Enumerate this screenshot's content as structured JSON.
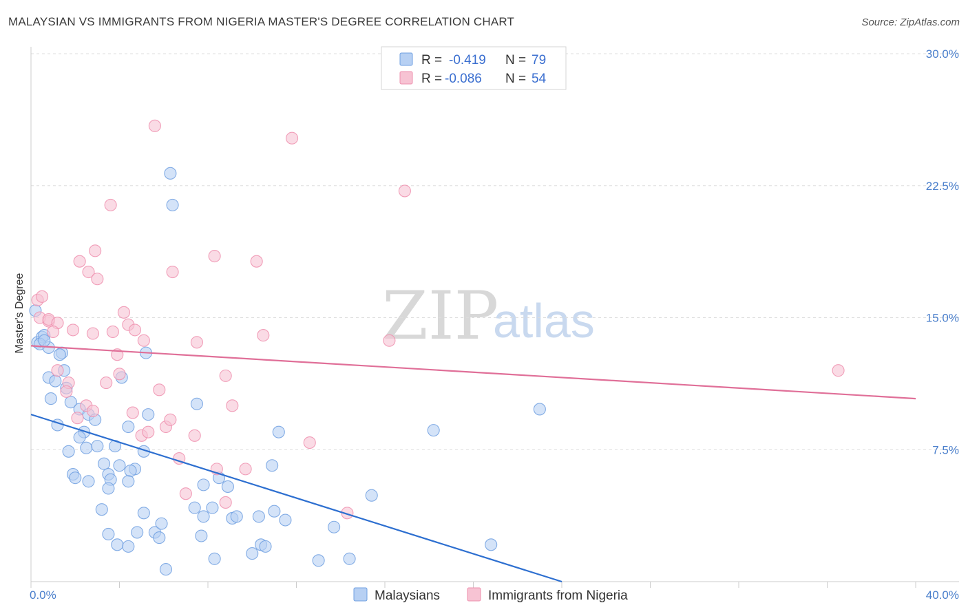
{
  "title": "MALAYSIAN VS IMMIGRANTS FROM NIGERIA MASTER'S DEGREE CORRELATION CHART",
  "source": "Source: ZipAtlas.com",
  "watermark": {
    "zip": "ZIP",
    "atlas": "atlas"
  },
  "colors": {
    "blue": "#6f9fe0",
    "blue_fill": "#b7d0f3",
    "blue_line": "#2d6fd0",
    "pink": "#ee8fae",
    "pink_fill": "#f7c3d3",
    "pink_line": "#e06f98",
    "tick": "#4a7fcc",
    "grid": "#dddddd"
  },
  "legend_top": {
    "rows": [
      {
        "r_label": "R =",
        "r_value": "-0.419",
        "n_label": "N =",
        "n_value": "79"
      },
      {
        "r_label": "R =",
        "r_value": "-0.086",
        "n_label": "N =",
        "n_value": "54"
      }
    ]
  },
  "legend_bottom": [
    "Malaysians",
    "Immigrants from Nigeria"
  ],
  "chart_data": {
    "type": "scatter",
    "title": "MALAYSIAN VS IMMIGRANTS FROM NIGERIA MASTER'S DEGREE CORRELATION CHART",
    "xlabel": "",
    "ylabel": "Master's Degree",
    "xlim": [
      0,
      40
    ],
    "ylim": [
      0,
      30
    ],
    "x_tick_labels": [
      "0.0%",
      "40.0%"
    ],
    "y_ticks": [
      7.5,
      15.0,
      22.5,
      30.0
    ],
    "y_tick_labels": [
      "7.5%",
      "15.0%",
      "22.5%",
      "30.0%"
    ],
    "grid": "horizontal dashed",
    "legend_placement": "top-center",
    "series": [
      {
        "name": "Malaysians",
        "r": -0.419,
        "n": 79,
        "trend": {
          "x": [
            0,
            24
          ],
          "y": [
            9.5,
            0.0
          ]
        },
        "points": [
          [
            0.2,
            15.4
          ],
          [
            0.3,
            13.6
          ],
          [
            0.5,
            13.9
          ],
          [
            0.6,
            14.0
          ],
          [
            0.4,
            13.5
          ],
          [
            0.8,
            13.3
          ],
          [
            1.4,
            13.0
          ],
          [
            0.8,
            11.6
          ],
          [
            1.1,
            11.4
          ],
          [
            1.5,
            12.0
          ],
          [
            1.6,
            11.0
          ],
          [
            0.9,
            10.4
          ],
          [
            1.8,
            10.2
          ],
          [
            2.2,
            9.8
          ],
          [
            2.6,
            9.5
          ],
          [
            2.9,
            9.2
          ],
          [
            1.2,
            8.9
          ],
          [
            2.4,
            8.5
          ],
          [
            2.2,
            8.2
          ],
          [
            1.7,
            7.4
          ],
          [
            2.5,
            7.6
          ],
          [
            3.0,
            7.7
          ],
          [
            3.3,
            6.7
          ],
          [
            3.5,
            6.1
          ],
          [
            3.8,
            7.7
          ],
          [
            4.0,
            6.6
          ],
          [
            4.7,
            6.4
          ],
          [
            5.1,
            7.4
          ],
          [
            4.5,
            6.3
          ],
          [
            4.4,
            5.7
          ],
          [
            1.9,
            6.1
          ],
          [
            2.0,
            5.9
          ],
          [
            2.6,
            5.7
          ],
          [
            3.6,
            5.8
          ],
          [
            3.5,
            5.3
          ],
          [
            3.2,
            4.1
          ],
          [
            5.1,
            3.9
          ],
          [
            5.6,
            2.8
          ],
          [
            5.8,
            2.5
          ],
          [
            5.9,
            3.3
          ],
          [
            4.8,
            2.8
          ],
          [
            3.5,
            2.7
          ],
          [
            3.9,
            2.1
          ],
          [
            4.4,
            2.0
          ],
          [
            6.1,
            0.7
          ],
          [
            4.1,
            11.6
          ],
          [
            5.2,
            13.0
          ],
          [
            5.3,
            9.5
          ],
          [
            4.4,
            8.8
          ],
          [
            6.3,
            23.2
          ],
          [
            6.4,
            21.4
          ],
          [
            7.5,
            10.1
          ],
          [
            7.7,
            2.6
          ],
          [
            7.8,
            3.7
          ],
          [
            7.4,
            4.2
          ],
          [
            8.2,
            4.2
          ],
          [
            7.8,
            5.5
          ],
          [
            8.5,
            5.9
          ],
          [
            8.9,
            5.4
          ],
          [
            9.1,
            3.6
          ],
          [
            9.3,
            3.7
          ],
          [
            8.3,
            1.3
          ],
          [
            10.3,
            3.7
          ],
          [
            10.4,
            2.1
          ],
          [
            10.6,
            2.0
          ],
          [
            10.0,
            1.6
          ],
          [
            10.9,
            6.6
          ],
          [
            11.0,
            4.0
          ],
          [
            11.2,
            8.5
          ],
          [
            11.5,
            3.5
          ],
          [
            13.0,
            1.2
          ],
          [
            13.7,
            3.1
          ],
          [
            14.4,
            1.3
          ],
          [
            15.4,
            4.9
          ],
          [
            18.2,
            8.6
          ],
          [
            20.8,
            2.1
          ],
          [
            23.0,
            9.8
          ],
          [
            0.6,
            13.7
          ],
          [
            1.3,
            12.9
          ]
        ]
      },
      {
        "name": "Immigrants from Nigeria",
        "r": -0.086,
        "n": 54,
        "trend": {
          "x": [
            0,
            40
          ],
          "y": [
            13.4,
            10.4
          ]
        },
        "points": [
          [
            0.3,
            16.0
          ],
          [
            0.5,
            16.2
          ],
          [
            0.4,
            15.0
          ],
          [
            0.8,
            14.8
          ],
          [
            0.8,
            14.9
          ],
          [
            1.2,
            14.7
          ],
          [
            1.0,
            14.2
          ],
          [
            1.9,
            14.3
          ],
          [
            1.2,
            12.0
          ],
          [
            1.7,
            11.3
          ],
          [
            1.6,
            10.8
          ],
          [
            2.5,
            10.0
          ],
          [
            2.1,
            9.3
          ],
          [
            2.8,
            9.7
          ],
          [
            2.8,
            14.1
          ],
          [
            3.7,
            14.2
          ],
          [
            4.2,
            15.3
          ],
          [
            4.4,
            14.6
          ],
          [
            4.7,
            14.3
          ],
          [
            5.1,
            13.7
          ],
          [
            3.4,
            11.3
          ],
          [
            4.0,
            11.8
          ],
          [
            3.9,
            12.9
          ],
          [
            4.6,
            9.6
          ],
          [
            5.0,
            8.3
          ],
          [
            5.3,
            8.5
          ],
          [
            5.8,
            10.9
          ],
          [
            6.1,
            8.8
          ],
          [
            6.3,
            9.2
          ],
          [
            6.7,
            7.0
          ],
          [
            7.0,
            5.0
          ],
          [
            7.4,
            8.3
          ],
          [
            7.5,
            13.6
          ],
          [
            8.4,
            6.4
          ],
          [
            8.8,
            4.5
          ],
          [
            8.8,
            11.7
          ],
          [
            9.1,
            10.0
          ],
          [
            9.7,
            6.4
          ],
          [
            10.2,
            18.2
          ],
          [
            10.5,
            14.0
          ],
          [
            11.8,
            25.2
          ],
          [
            12.6,
            7.9
          ],
          [
            14.3,
            3.9
          ],
          [
            16.2,
            13.7
          ],
          [
            16.9,
            22.2
          ],
          [
            2.2,
            18.2
          ],
          [
            2.6,
            17.6
          ],
          [
            3.0,
            17.2
          ],
          [
            2.9,
            18.8
          ],
          [
            3.6,
            21.4
          ],
          [
            5.6,
            25.9
          ],
          [
            6.4,
            17.6
          ],
          [
            8.3,
            18.5
          ],
          [
            36.5,
            12.0
          ]
        ]
      }
    ]
  }
}
